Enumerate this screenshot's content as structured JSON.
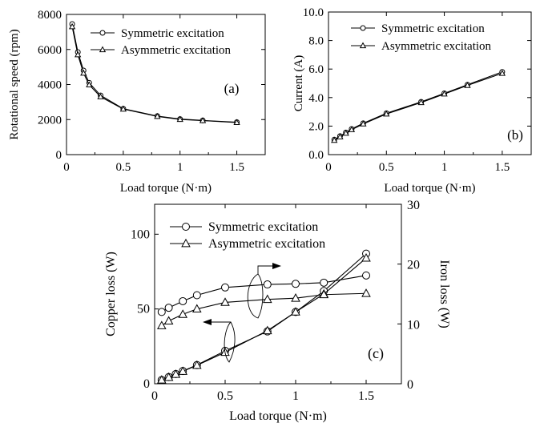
{
  "chart_data": [
    {
      "id": "a",
      "type": "line",
      "panel_label": "(a)",
      "xlabel": "Load torque (N·m)",
      "ylabel": "Rotational speed (rpm)",
      "xlim": [
        0,
        1.75
      ],
      "ylim": [
        0,
        8000
      ],
      "xticks": [
        "0",
        "0.5",
        "1",
        "1.5"
      ],
      "yticks": [
        "0",
        "2000",
        "4000",
        "6000",
        "8000"
      ],
      "legend_position": "top-right",
      "series": [
        {
          "name": "Symmetric excitation",
          "marker": "circle",
          "x": [
            0.05,
            0.1,
            0.15,
            0.2,
            0.3,
            0.5,
            0.8,
            1.0,
            1.2,
            1.5
          ],
          "values": [
            7450,
            5850,
            4800,
            4100,
            3380,
            2620,
            2200,
            2030,
            1950,
            1850
          ]
        },
        {
          "name": "Asymmetric excitation",
          "marker": "triangle",
          "x": [
            0.05,
            0.1,
            0.15,
            0.2,
            0.3,
            0.5,
            0.8,
            1.0,
            1.2,
            1.5
          ],
          "values": [
            7300,
            5700,
            4650,
            3980,
            3300,
            2600,
            2180,
            2010,
            1940,
            1830
          ]
        }
      ]
    },
    {
      "id": "b",
      "type": "line",
      "panel_label": "(b)",
      "xlabel": "Load torque (N·m)",
      "ylabel": "Current (A)",
      "xlim": [
        0,
        1.75
      ],
      "ylim": [
        0,
        10
      ],
      "xticks": [
        "0",
        "0.5",
        "1",
        "1.5"
      ],
      "yticks": [
        "0.0",
        "2.0",
        "4.0",
        "6.0",
        "8.0",
        "10.0"
      ],
      "legend_position": "top-right",
      "series": [
        {
          "name": "Symmetric excitation",
          "marker": "circle",
          "x": [
            0.05,
            0.1,
            0.15,
            0.2,
            0.3,
            0.5,
            0.8,
            1.0,
            1.2,
            1.5
          ],
          "values": [
            1.05,
            1.3,
            1.55,
            1.8,
            2.2,
            2.9,
            3.7,
            4.3,
            4.9,
            5.8
          ]
        },
        {
          "name": "Asymmetric excitation",
          "marker": "triangle",
          "x": [
            0.05,
            0.1,
            0.15,
            0.2,
            0.3,
            0.5,
            0.8,
            1.0,
            1.2,
            1.5
          ],
          "values": [
            1.0,
            1.25,
            1.5,
            1.75,
            2.15,
            2.85,
            3.65,
            4.25,
            4.85,
            5.7
          ]
        }
      ]
    },
    {
      "id": "c",
      "type": "line",
      "panel_label": "(c)",
      "xlabel": "Load torque (N·m)",
      "ylabel": "Copper loss (W)",
      "ylabel_right": "Iron loss (W)",
      "xlim": [
        0,
        1.75
      ],
      "ylim": [
        0,
        120
      ],
      "ylim_right": [
        0,
        30
      ],
      "xticks": [
        "0",
        "0.5",
        "1",
        "1.5"
      ],
      "yticks": [
        "0",
        "50",
        "100"
      ],
      "yticks_right": [
        "0",
        "10",
        "20",
        "30"
      ],
      "legend_position": "top-left",
      "series": [
        {
          "name": "Symmetric excitation",
          "marker": "circle",
          "axis": "left",
          "x": [
            0.05,
            0.1,
            0.15,
            0.2,
            0.3,
            0.5,
            0.8,
            1.0,
            1.2,
            1.5
          ],
          "values": [
            2.5,
            4.5,
            6.5,
            8.5,
            12.5,
            22,
            35,
            48,
            62,
            87
          ]
        },
        {
          "name": "Asymmetric excitation",
          "marker": "triangle",
          "axis": "left",
          "x": [
            0.05,
            0.1,
            0.15,
            0.2,
            0.3,
            0.5,
            0.8,
            1.0,
            1.2,
            1.5
          ],
          "values": [
            2.5,
            4.3,
            6.3,
            8.3,
            12.3,
            21,
            35.5,
            48,
            60,
            84
          ]
        },
        {
          "name": "Symmetric excitation",
          "marker": "circle",
          "axis": "right",
          "x": [
            0.05,
            0.1,
            0.2,
            0.3,
            0.5,
            0.8,
            1.0,
            1.2,
            1.5
          ],
          "values": [
            12,
            12.7,
            13.8,
            14.8,
            16.1,
            16.6,
            16.7,
            16.9,
            18.1
          ]
        },
        {
          "name": "Asymmetric excitation",
          "marker": "triangle",
          "axis": "right",
          "x": [
            0.05,
            0.1,
            0.2,
            0.3,
            0.5,
            0.8,
            1.0,
            1.2,
            1.5
          ],
          "values": [
            9.7,
            10.5,
            11.6,
            12.5,
            13.6,
            14.1,
            14.3,
            14.9,
            15.1
          ]
        }
      ]
    }
  ]
}
